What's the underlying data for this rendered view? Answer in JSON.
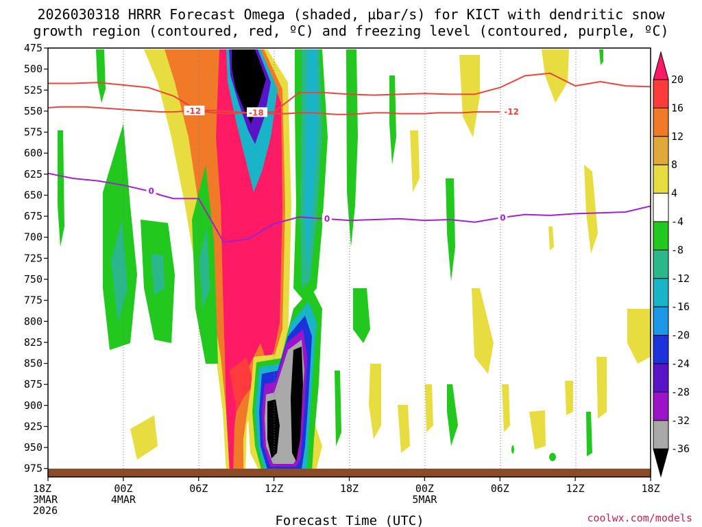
{
  "chart_data": {
    "type": "heatmap",
    "title_lines": [
      "2026030318 HRRR Forecast Omega (shaded, µbar/s) for KICT with dendritic snow",
      "growth region (contoured, red, ºC) and freezing level (contoured, purple, ºC)"
    ],
    "xlabel": "Forecast Time (UTC)",
    "ylabel": "",
    "credit": "coolwx.com/models",
    "x_hours": [
      0,
      6,
      12,
      18,
      24,
      30,
      36,
      42,
      48
    ],
    "x_ticks": [
      {
        "hour": 0,
        "lines": [
          "18Z",
          "3MAR",
          "2026"
        ]
      },
      {
        "hour": 6,
        "lines": [
          "00Z",
          "4MAR"
        ]
      },
      {
        "hour": 12,
        "lines": [
          "06Z"
        ]
      },
      {
        "hour": 18,
        "lines": [
          "12Z"
        ]
      },
      {
        "hour": 24,
        "lines": [
          "18Z"
        ]
      },
      {
        "hour": 30,
        "lines": [
          "00Z",
          "5MAR"
        ]
      },
      {
        "hour": 36,
        "lines": [
          "06Z"
        ]
      },
      {
        "hour": 42,
        "lines": [
          "12Z"
        ]
      },
      {
        "hour": 48,
        "lines": [
          "18Z"
        ]
      }
    ],
    "y_ticks": [
      475,
      500,
      525,
      550,
      575,
      600,
      625,
      650,
      675,
      700,
      725,
      750,
      775,
      800,
      825,
      850,
      875,
      900,
      925,
      950,
      975
    ],
    "ylim": [
      475,
      985
    ],
    "xlim": [
      0,
      48
    ],
    "colorbar": {
      "labels": [
        "20",
        "16",
        "12",
        "8",
        "4",
        "-4",
        "-8",
        "-12",
        "-16",
        "-20",
        "-24",
        "-28",
        "-32",
        "-36"
      ],
      "levels": [
        20,
        16,
        12,
        8,
        4,
        -4,
        -8,
        -12,
        -16,
        -20,
        -24,
        -28,
        -32,
        -36
      ],
      "colors": [
        "#ff1a66",
        "#ff3b3b",
        "#f07a28",
        "#e0a93a",
        "#e8dd40",
        "#ffffff",
        "#22c81e",
        "#2ab88a",
        "#1ab4c8",
        "#1e96e6",
        "#1e32dc",
        "#5a14c8",
        "#9a14c8",
        "#a8a8a8",
        "#000000"
      ]
    },
    "series": [
      {
        "name": "dendritic growth region -12 C",
        "color": "#e8453c",
        "label": "-12",
        "hours": [
          0,
          1,
          2,
          3,
          4,
          5,
          6,
          7,
          8,
          9,
          10,
          11,
          12,
          13,
          14,
          15,
          16,
          17,
          18,
          19,
          20,
          21,
          22,
          23,
          24,
          25,
          26,
          27,
          28,
          29,
          30,
          31,
          32,
          33,
          34,
          35,
          36
        ],
        "pressure": [
          546,
          545,
          545,
          545,
          546,
          547,
          548,
          549,
          550,
          551,
          551,
          550,
          549,
          549,
          550,
          551,
          552,
          552,
          553,
          553,
          552,
          552,
          553,
          554,
          554,
          553,
          552,
          552,
          553,
          553,
          553,
          552,
          552,
          552,
          551,
          551,
          551
        ]
      },
      {
        "name": "dendritic growth region -18 C",
        "color": "#e8453c",
        "label": "-18",
        "hours": [
          0,
          2,
          4,
          6,
          8,
          10,
          12,
          14,
          16,
          18,
          20,
          22,
          24,
          26,
          28,
          30,
          32,
          34,
          36,
          38,
          40,
          42,
          44,
          46,
          48
        ],
        "pressure": [
          517,
          517,
          516,
          519,
          522,
          532,
          550,
          553,
          552,
          551,
          528,
          528,
          530,
          531,
          530,
          529,
          530,
          530,
          522,
          508,
          505,
          520,
          515,
          520,
          521
        ]
      },
      {
        "name": "freezing level 0 C",
        "color": "#a020d0",
        "label": "0",
        "hours": [
          0,
          2,
          4,
          6,
          8,
          9,
          10,
          11,
          12,
          13,
          14,
          16,
          18,
          20,
          22,
          24,
          26,
          28,
          30,
          32,
          34,
          36,
          38,
          40,
          42,
          44,
          46,
          48
        ],
        "pressure": [
          624,
          630,
          633,
          638,
          645,
          650,
          654,
          654,
          654,
          680,
          706,
          702,
          684,
          676,
          678,
          680,
          679,
          678,
          680,
          679,
          682,
          677,
          673,
          674,
          672,
          671,
          670,
          663
        ]
      }
    ]
  }
}
